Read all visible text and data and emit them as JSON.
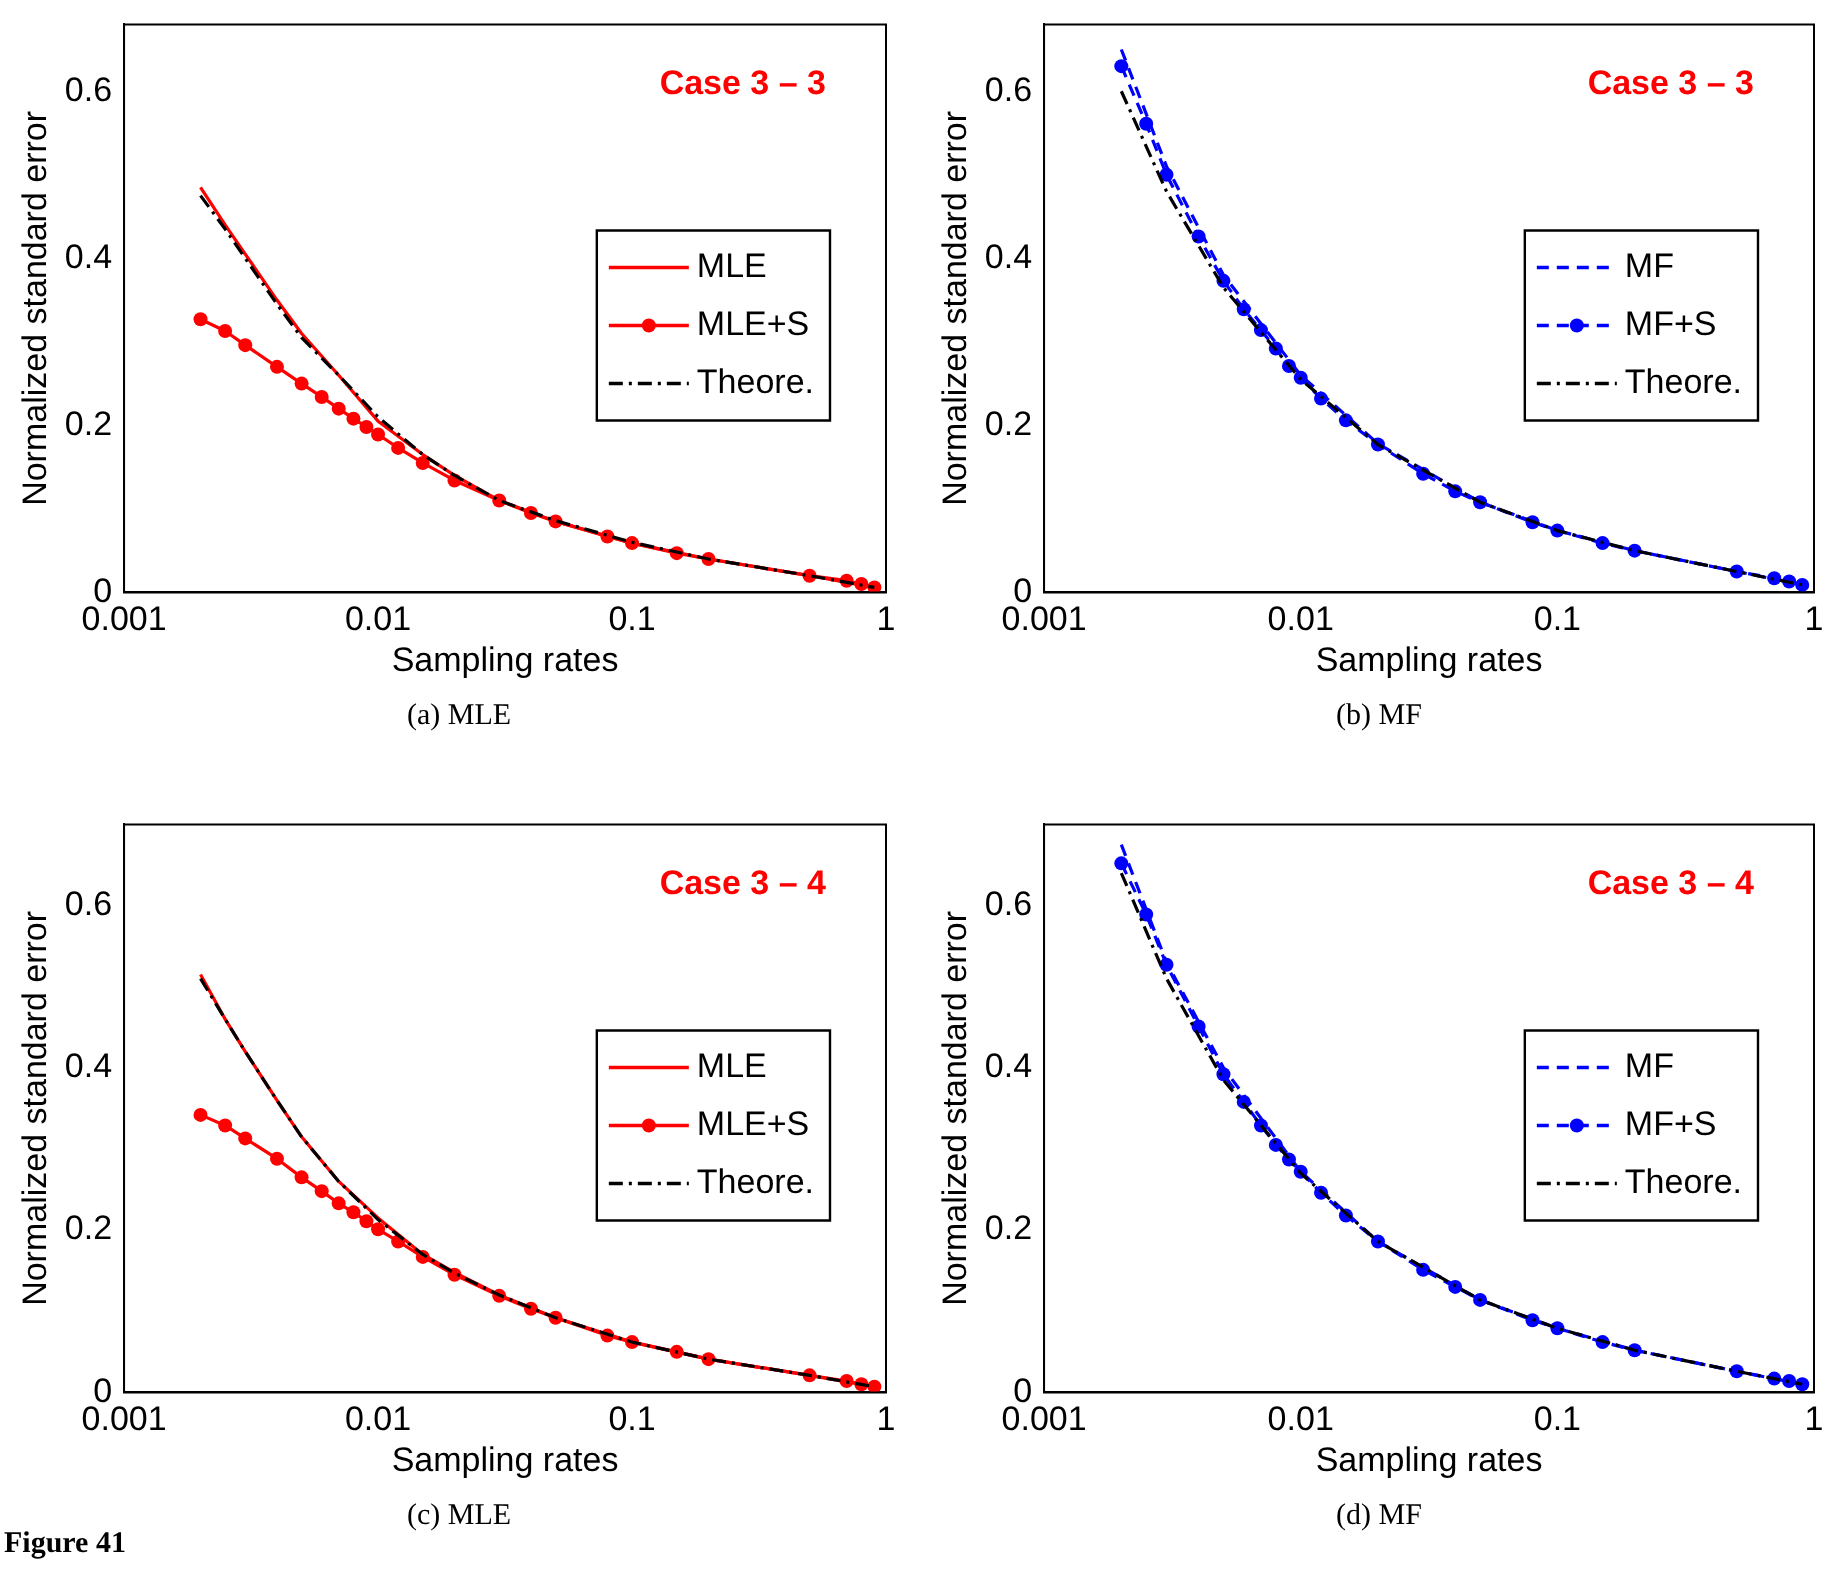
{
  "chart_data": [
    {
      "type": "line",
      "xlabel": "Sampling rates",
      "ylabel": "Normalized standard error",
      "log": "x",
      "xlim": [
        0.001,
        1
      ],
      "xticks": [
        0.001,
        0.01,
        0.1,
        1
      ],
      "ylim": [
        0,
        0.68
      ],
      "yticks": [
        0,
        0.2,
        0.4,
        0.6
      ],
      "grid": false,
      "legend": "right",
      "annotations": [
        "Case 3 – 3",
        "(a)  MLE"
      ],
      "series": [
        {
          "name": "MLE",
          "color": "#ff0000",
          "line_style": "solid",
          "marker": "none",
          "x": [
            0.002,
            0.0025,
            0.003,
            0.004,
            0.005,
            0.007,
            0.01,
            0.015,
            0.02,
            0.03,
            0.05,
            0.1,
            0.2,
            0.5,
            0.9
          ],
          "values": [
            0.485,
            0.44,
            0.405,
            0.35,
            0.31,
            0.26,
            0.205,
            0.165,
            0.14,
            0.11,
            0.085,
            0.059,
            0.04,
            0.02,
            0.006
          ]
        },
        {
          "name": "MLE+S",
          "color": "#ff0000",
          "line_style": "solid",
          "marker": "circle",
          "x": [
            0.002,
            0.0025,
            0.003,
            0.004,
            0.005,
            0.006,
            0.007,
            0.008,
            0.009,
            0.01,
            0.012,
            0.015,
            0.02,
            0.03,
            0.04,
            0.05,
            0.08,
            0.1,
            0.15,
            0.2,
            0.5,
            0.7,
            0.8,
            0.9
          ],
          "values": [
            0.327,
            0.313,
            0.296,
            0.27,
            0.25,
            0.234,
            0.22,
            0.208,
            0.198,
            0.189,
            0.173,
            0.155,
            0.134,
            0.11,
            0.095,
            0.085,
            0.067,
            0.059,
            0.047,
            0.04,
            0.02,
            0.014,
            0.01,
            0.006
          ]
        },
        {
          "name": "Theore.",
          "color": "#000000",
          "line_style": "dashdot",
          "marker": "none",
          "x": [
            0.002,
            0.0025,
            0.003,
            0.004,
            0.005,
            0.007,
            0.01,
            0.015,
            0.02,
            0.03,
            0.05,
            0.1,
            0.2,
            0.5,
            0.9
          ],
          "values": [
            0.475,
            0.435,
            0.4,
            0.345,
            0.305,
            0.26,
            0.21,
            0.165,
            0.14,
            0.11,
            0.086,
            0.06,
            0.04,
            0.02,
            0.006
          ]
        }
      ]
    },
    {
      "type": "line",
      "xlabel": "Sampling rates",
      "ylabel": "Normalized standard error",
      "log": "x",
      "xlim": [
        0.001,
        1
      ],
      "xticks": [
        0.001,
        0.01,
        0.1,
        1
      ],
      "ylim": [
        0,
        0.68
      ],
      "yticks": [
        0,
        0.2,
        0.4,
        0.6
      ],
      "grid": false,
      "legend": "right",
      "annotations": [
        "Case 3 – 3",
        "(b)  MF"
      ],
      "series": [
        {
          "name": "MF",
          "color": "#0000ff",
          "line_style": "dashed",
          "x": [
            0.002,
            0.003,
            0.005,
            0.01,
            0.02,
            0.05,
            0.1,
            0.2,
            0.5,
            0.9
          ],
          "values": [
            0.65,
            0.51,
            0.38,
            0.26,
            0.178,
            0.108,
            0.074,
            0.05,
            0.025,
            0.009
          ]
        },
        {
          "name": "MF+S",
          "color": "#0000ff",
          "line_style": "dashed",
          "marker": "circle",
          "x": [
            0.002,
            0.0025,
            0.003,
            0.004,
            0.005,
            0.006,
            0.007,
            0.008,
            0.009,
            0.01,
            0.012,
            0.015,
            0.02,
            0.03,
            0.04,
            0.05,
            0.08,
            0.1,
            0.15,
            0.2,
            0.5,
            0.7,
            0.8,
            0.9
          ],
          "values": [
            0.63,
            0.561,
            0.5,
            0.426,
            0.373,
            0.339,
            0.314,
            0.292,
            0.271,
            0.257,
            0.232,
            0.206,
            0.177,
            0.142,
            0.121,
            0.108,
            0.084,
            0.074,
            0.059,
            0.05,
            0.025,
            0.017,
            0.013,
            0.009
          ]
        },
        {
          "name": "Theore.",
          "color": "#000000",
          "line_style": "dashdot",
          "marker": "none",
          "x": [
            0.002,
            0.003,
            0.005,
            0.01,
            0.02,
            0.05,
            0.1,
            0.2,
            0.5,
            0.9
          ],
          "values": [
            0.6,
            0.48,
            0.365,
            0.255,
            0.177,
            0.108,
            0.074,
            0.05,
            0.025,
            0.009
          ]
        }
      ]
    },
    {
      "type": "line",
      "xlabel": "Sampling rates",
      "ylabel": "Normalized standard error",
      "log": "x",
      "xlim": [
        0.001,
        1
      ],
      "xticks": [
        0.001,
        0.01,
        0.1,
        1
      ],
      "ylim": [
        0,
        0.7
      ],
      "yticks": [
        0,
        0.2,
        0.4,
        0.6
      ],
      "grid": false,
      "legend": "right",
      "annotations": [
        "Case 3 – 4",
        "(c)  MLE",
        "Figure 41"
      ],
      "series": [
        {
          "name": "MLE",
          "color": "#ff0000",
          "line_style": "solid",
          "marker": "none",
          "x": [
            0.002,
            0.0025,
            0.003,
            0.004,
            0.005,
            0.007,
            0.01,
            0.015,
            0.02,
            0.03,
            0.05,
            0.1,
            0.2,
            0.5,
            0.9
          ],
          "values": [
            0.515,
            0.46,
            0.42,
            0.36,
            0.315,
            0.26,
            0.215,
            0.17,
            0.148,
            0.12,
            0.092,
            0.062,
            0.041,
            0.021,
            0.007
          ]
        },
        {
          "name": "MLE+S",
          "color": "#ff0000",
          "line_style": "solid",
          "marker": "circle",
          "x": [
            0.002,
            0.0025,
            0.003,
            0.004,
            0.005,
            0.006,
            0.007,
            0.008,
            0.009,
            0.01,
            0.012,
            0.015,
            0.02,
            0.03,
            0.04,
            0.05,
            0.08,
            0.1,
            0.15,
            0.2,
            0.5,
            0.7,
            0.8,
            0.9
          ],
          "values": [
            0.342,
            0.329,
            0.313,
            0.288,
            0.265,
            0.248,
            0.233,
            0.222,
            0.211,
            0.201,
            0.186,
            0.167,
            0.145,
            0.119,
            0.103,
            0.092,
            0.07,
            0.062,
            0.05,
            0.041,
            0.021,
            0.014,
            0.01,
            0.007
          ]
        },
        {
          "name": "Theore.",
          "color": "#000000",
          "line_style": "dashdot",
          "marker": "none",
          "x": [
            0.002,
            0.0025,
            0.003,
            0.004,
            0.005,
            0.007,
            0.01,
            0.015,
            0.02,
            0.03,
            0.05,
            0.1,
            0.2,
            0.5,
            0.9
          ],
          "values": [
            0.51,
            0.46,
            0.42,
            0.36,
            0.315,
            0.26,
            0.213,
            0.17,
            0.147,
            0.12,
            0.092,
            0.062,
            0.041,
            0.021,
            0.007
          ]
        }
      ]
    },
    {
      "type": "line",
      "xlabel": "Sampling rates",
      "ylabel": "Normalized standard error",
      "log": "x",
      "xlim": [
        0.001,
        1
      ],
      "xticks": [
        0.001,
        0.01,
        0.1,
        1
      ],
      "ylim": [
        0,
        0.7
      ],
      "yticks": [
        0,
        0.2,
        0.4,
        0.6
      ],
      "grid": false,
      "legend": "right",
      "annotations": [
        "Case 3 – 4",
        "(d)  MF"
      ],
      "series": [
        {
          "name": "MF",
          "color": "#0000ff",
          "line_style": "dashed",
          "x": [
            0.002,
            0.003,
            0.005,
            0.01,
            0.02,
            0.05,
            0.1,
            0.2,
            0.5,
            0.9
          ],
          "values": [
            0.675,
            0.53,
            0.4,
            0.272,
            0.186,
            0.114,
            0.079,
            0.052,
            0.026,
            0.01
          ]
        },
        {
          "name": "MF+S",
          "color": "#0000ff",
          "line_style": "dashed",
          "marker": "circle",
          "x": [
            0.002,
            0.0025,
            0.003,
            0.004,
            0.005,
            0.006,
            0.007,
            0.008,
            0.009,
            0.01,
            0.012,
            0.015,
            0.02,
            0.03,
            0.04,
            0.05,
            0.08,
            0.1,
            0.15,
            0.2,
            0.5,
            0.7,
            0.8,
            0.9
          ],
          "values": [
            0.652,
            0.589,
            0.527,
            0.451,
            0.392,
            0.358,
            0.329,
            0.305,
            0.287,
            0.272,
            0.246,
            0.218,
            0.186,
            0.151,
            0.13,
            0.114,
            0.089,
            0.079,
            0.062,
            0.052,
            0.026,
            0.017,
            0.014,
            0.01
          ]
        },
        {
          "name": "Theore.",
          "color": "#000000",
          "line_style": "dashdot",
          "marker": "none",
          "x": [
            0.002,
            0.003,
            0.005,
            0.01,
            0.02,
            0.05,
            0.1,
            0.2,
            0.5,
            0.9
          ],
          "values": [
            0.64,
            0.51,
            0.385,
            0.27,
            0.186,
            0.114,
            0.079,
            0.052,
            0.026,
            0.01
          ]
        }
      ]
    }
  ]
}
